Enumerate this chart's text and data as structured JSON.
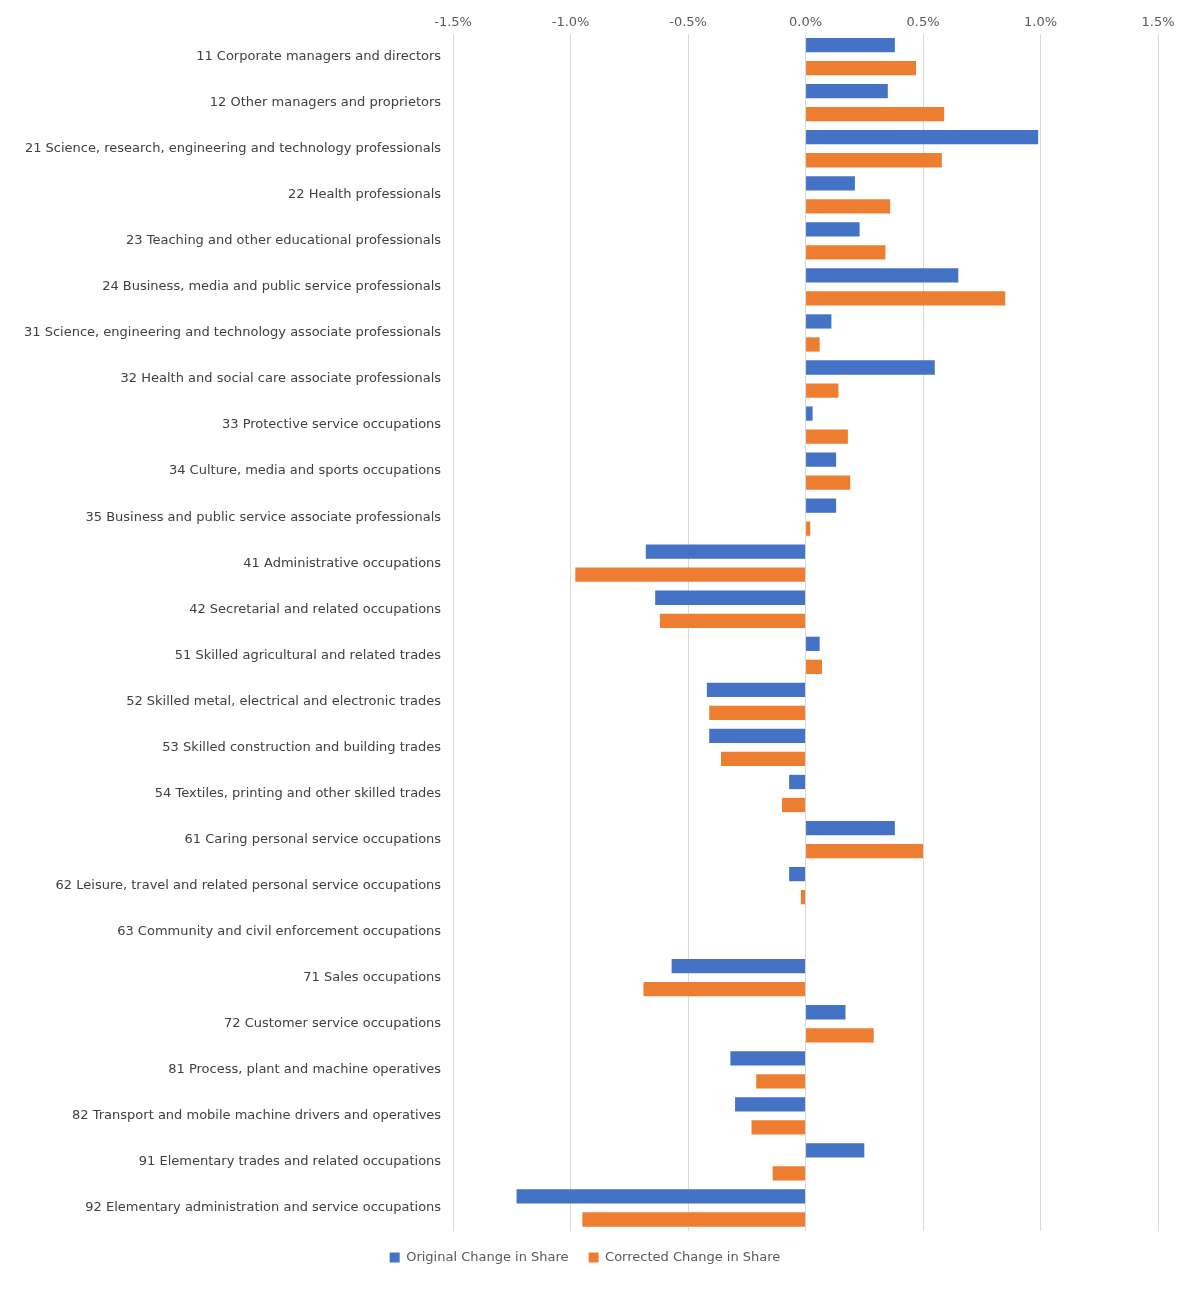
{
  "chart_data": {
    "type": "bar",
    "orientation": "horizontal",
    "categories": [
      "11 Corporate managers and directors",
      "12 Other managers and proprietors",
      "21 Science, research, engineering and technology professionals",
      "22 Health professionals",
      "23 Teaching and other educational professionals",
      "24 Business, media and public service professionals",
      "31 Science, engineering and technology associate professionals",
      "32 Health and social care associate professionals",
      "33 Protective service occupations",
      "34 Culture, media and sports occupations",
      "35 Business and public service associate professionals",
      "41 Administrative occupations",
      "42 Secretarial and related occupations",
      "51 Skilled agricultural and related trades",
      "52 Skilled metal, electrical and electronic trades",
      "53 Skilled construction and building trades",
      "54 Textiles, printing and other skilled trades",
      "61 Caring personal service occupations",
      "62 Leisure, travel and related personal service occupations",
      "63 Community and civil enforcement occupations",
      "71 Sales occupations",
      "72 Customer service occupations",
      "81 Process, plant and machine operatives",
      "82 Transport and mobile machine drivers and operatives",
      "91 Elementary trades and related occupations",
      "92 Elementary administration and service occupations"
    ],
    "series": [
      {
        "name": "Original Change in Share",
        "color": "#4472c4",
        "values": [
          0.38,
          0.35,
          0.99,
          0.21,
          0.23,
          0.65,
          0.11,
          0.55,
          0.03,
          0.13,
          0.13,
          -0.68,
          -0.64,
          0.06,
          -0.42,
          -0.41,
          -0.07,
          0.38,
          -0.07,
          0,
          -0.57,
          0.17,
          -0.32,
          -0.3,
          0.25,
          -1.23
        ]
      },
      {
        "name": "Corrected Change in Share",
        "color": "#ed7d31",
        "values": [
          0.47,
          0.59,
          0.58,
          0.36,
          0.34,
          0.85,
          0.06,
          0.14,
          0.18,
          0.19,
          0.02,
          -0.98,
          -0.62,
          0.07,
          -0.41,
          -0.36,
          -0.1,
          0.5,
          -0.02,
          0,
          -0.69,
          0.29,
          -0.21,
          -0.23,
          -0.14,
          -0.95
        ]
      }
    ],
    "xlim": [
      -1.5,
      1.5
    ],
    "xticks": [
      {
        "value": -1.5,
        "label": "-1.5%"
      },
      {
        "value": -1,
        "label": "-1.0%"
      },
      {
        "value": -0.5,
        "label": "-0.5%"
      },
      {
        "value": 0,
        "label": "0.0%"
      },
      {
        "value": 0.5,
        "label": "0.5%"
      },
      {
        "value": 1,
        "label": "1.0%"
      },
      {
        "value": 1.5,
        "label": "1.5%"
      }
    ],
    "grid": "x",
    "legend": "bottom"
  }
}
